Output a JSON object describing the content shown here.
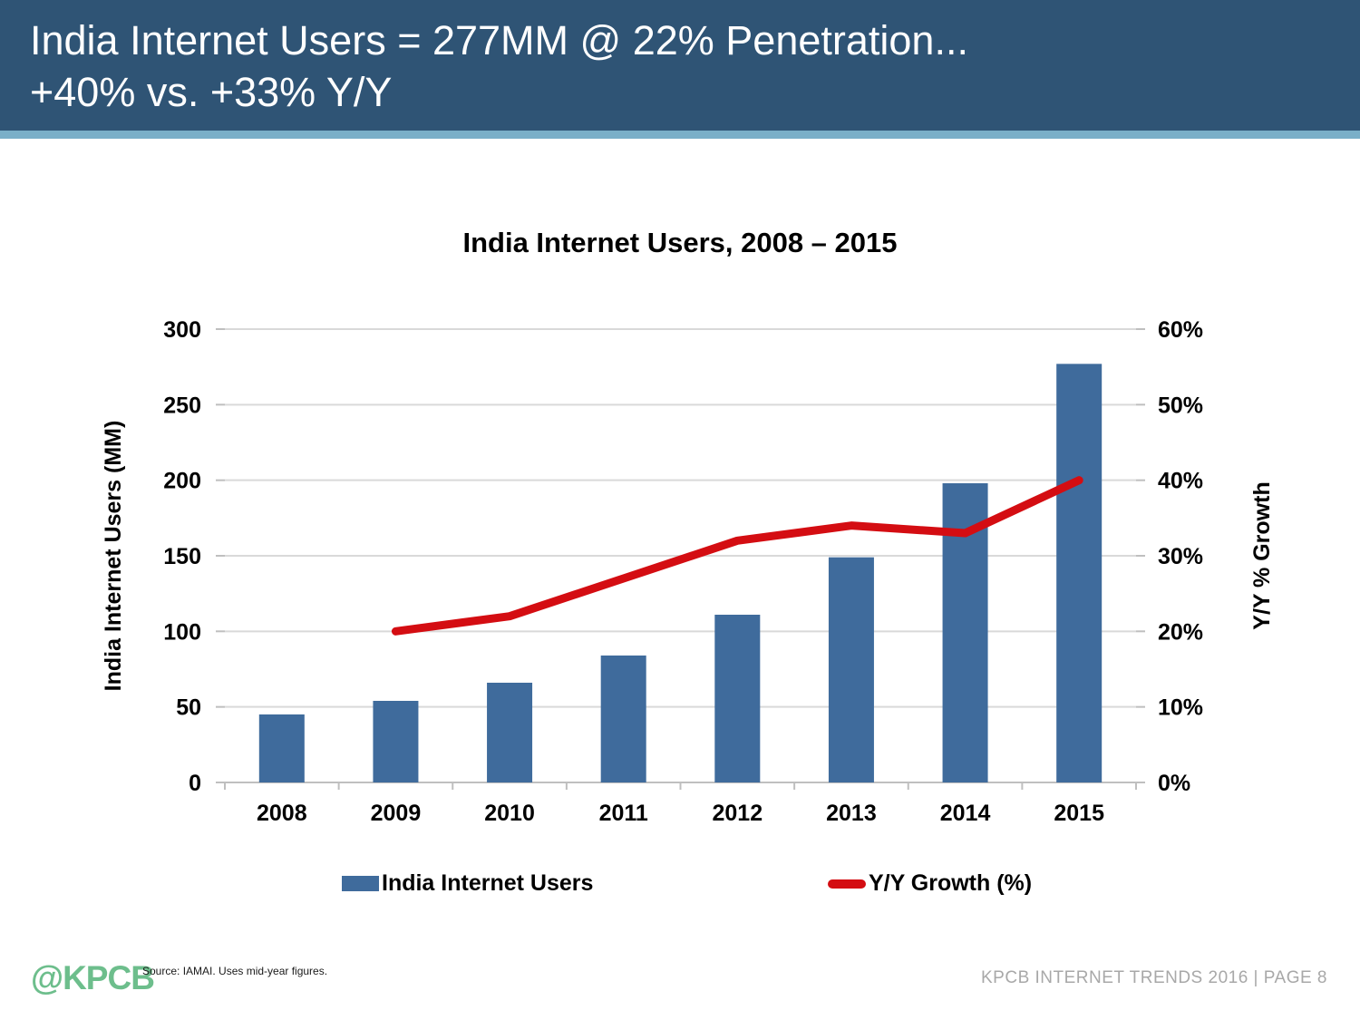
{
  "header": {
    "title_line1": "India Internet Users = 277MM @ 22% Penetration...",
    "title_line2": "+40% vs. +33% Y/Y"
  },
  "chart_data": {
    "type": "combo",
    "title": "India Internet Users, 2008 – 2015",
    "categories": [
      "2008",
      "2009",
      "2010",
      "2011",
      "2012",
      "2013",
      "2014",
      "2015"
    ],
    "series": [
      {
        "name": "India Internet Users",
        "type": "bar",
        "axis": "left",
        "color": "#3F6B9C",
        "values": [
          45,
          54,
          66,
          84,
          111,
          149,
          198,
          277
        ]
      },
      {
        "name": "Y/Y Growth (%)",
        "type": "line",
        "axis": "right",
        "color": "#D40D12",
        "values": [
          null,
          20,
          22,
          27,
          32,
          34,
          33,
          40
        ]
      }
    ],
    "left_axis": {
      "label": "India Internet Users (MM)",
      "min": 0,
      "max": 300,
      "step": 50,
      "tick_labels": [
        "0",
        "50",
        "100",
        "150",
        "200",
        "250",
        "300"
      ]
    },
    "right_axis": {
      "label": "Y/Y % Growth",
      "min": 0,
      "max": 60,
      "step": 10,
      "tick_labels": [
        "0%",
        "10%",
        "20%",
        "30%",
        "40%",
        "50%",
        "60%"
      ]
    },
    "grid": true,
    "legend_position": "bottom",
    "grid_color": "#D9D9D9",
    "axis_line_color": "#BFBFBF"
  },
  "legend": {
    "bar_label": "India Internet Users",
    "line_label": "Y/Y Growth (%)"
  },
  "footer": {
    "logo_text": "@KPCB",
    "source": "Source: IAMAI. Uses mid-year figures.",
    "right": "KPCB INTERNET TRENDS 2016   |   PAGE 8"
  }
}
